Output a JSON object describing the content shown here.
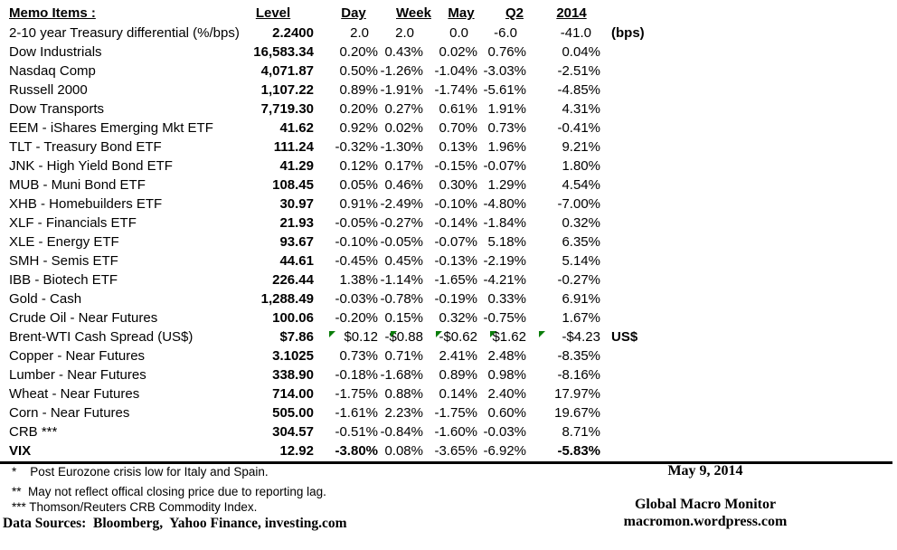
{
  "colors": {
    "flag_green": "#0a7d0a",
    "text": "#000000",
    "background": "#ffffff"
  },
  "table": {
    "title": "Memo Items :",
    "columns": [
      "Level",
      "Day",
      "Week",
      "May",
      "Q2",
      "2014"
    ],
    "rows": [
      {
        "label": "2-10 year Treasury differential (%/bps)",
        "level": "2.2400",
        "values": [
          "2.0",
          "2.0",
          "0.0",
          "-6.0",
          "-41.0"
        ],
        "suffix": "(bps)",
        "pad_values": true
      },
      {
        "label": "Dow Industrials",
        "level": "16,583.34",
        "values": [
          "0.20%",
          "0.43%",
          "0.02%",
          "0.76%",
          "0.04%"
        ]
      },
      {
        "label": "Nasdaq Comp",
        "level": "4,071.87",
        "values": [
          "0.50%",
          "-1.26%",
          "-1.04%",
          "-3.03%",
          "-2.51%"
        ]
      },
      {
        "label": "Russell 2000",
        "level": "1,107.22",
        "values": [
          "0.89%",
          "-1.91%",
          "-1.74%",
          "-5.61%",
          "-4.85%"
        ]
      },
      {
        "label": "Dow Transports",
        "level": "7,719.30",
        "values": [
          "0.20%",
          "0.27%",
          "0.61%",
          "1.91%",
          "4.31%"
        ]
      },
      {
        "label": "EEM - iShares Emerging Mkt ETF",
        "level": "41.62",
        "values": [
          "0.92%",
          "0.02%",
          "0.70%",
          "0.73%",
          "-0.41%"
        ]
      },
      {
        "label": "TLT - Treasury Bond ETF",
        "level": "111.24",
        "values": [
          "-0.32%",
          "-1.30%",
          "0.13%",
          "1.96%",
          "9.21%"
        ]
      },
      {
        "label": "JNK - High Yield Bond ETF",
        "level": "41.29",
        "values": [
          "0.12%",
          "0.17%",
          "-0.15%",
          "-0.07%",
          "1.80%"
        ]
      },
      {
        "label": "MUB - Muni Bond ETF",
        "level": "108.45",
        "values": [
          "0.05%",
          "0.46%",
          "0.30%",
          "1.29%",
          "4.54%"
        ]
      },
      {
        "label": "XHB - Homebuilders ETF",
        "level": "30.97",
        "values": [
          "0.91%",
          "-2.49%",
          "-0.10%",
          "-4.80%",
          "-7.00%"
        ]
      },
      {
        "label": "XLF - Financials ETF",
        "level": "21.93",
        "values": [
          "-0.05%",
          "-0.27%",
          "-0.14%",
          "-1.84%",
          "0.32%"
        ]
      },
      {
        "label": "XLE - Energy ETF",
        "level": "93.67",
        "values": [
          "-0.10%",
          "-0.05%",
          "-0.07%",
          "5.18%",
          "6.35%"
        ]
      },
      {
        "label": "SMH - Semis ETF",
        "level": "44.61",
        "values": [
          "-0.45%",
          "0.45%",
          "-0.13%",
          "-2.19%",
          "5.14%"
        ]
      },
      {
        "label": "IBB - Biotech ETF",
        "level": "226.44",
        "values": [
          "1.38%",
          "-1.14%",
          "-1.65%",
          "-4.21%",
          "-0.27%"
        ]
      },
      {
        "label": "Gold - Cash",
        "level": "1,288.49",
        "values": [
          "-0.03%",
          "-0.78%",
          "-0.19%",
          "0.33%",
          "6.91%"
        ]
      },
      {
        "label": "Crude Oil - Near Futures",
        "level": "100.06",
        "values": [
          "-0.20%",
          "0.15%",
          "0.32%",
          "-0.75%",
          "1.67%"
        ]
      },
      {
        "label": "Brent-WTI Cash Spread (US$)",
        "level": "$7.86",
        "values": [
          "$0.12",
          "-$0.88",
          "-$0.62",
          "$1.62",
          "-$4.23"
        ],
        "suffix": "US$",
        "flags": true
      },
      {
        "label": "Copper - Near Futures",
        "level": "3.1025",
        "values": [
          "0.73%",
          "0.71%",
          "2.41%",
          "2.48%",
          "-8.35%"
        ]
      },
      {
        "label": "Lumber - Near Futures",
        "level": "338.90",
        "values": [
          "-0.18%",
          "-1.68%",
          "0.89%",
          "0.98%",
          "-8.16%"
        ]
      },
      {
        "label": "Wheat - Near Futures",
        "level": "714.00",
        "values": [
          "-1.75%",
          "0.88%",
          "0.14%",
          "2.40%",
          "17.97%"
        ]
      },
      {
        "label": "Corn - Near Futures",
        "level": "505.00",
        "values": [
          "-1.61%",
          "2.23%",
          "-1.75%",
          "0.60%",
          "19.67%"
        ]
      },
      {
        "label": "CRB ***",
        "level": "304.57",
        "values": [
          "-0.51%",
          "-0.84%",
          "-1.60%",
          "-0.03%",
          "8.71%"
        ]
      },
      {
        "label": "VIX",
        "label_bold": true,
        "level": "12.92",
        "values": [
          "-3.80%",
          "0.08%",
          "-3.65%",
          "-6.92%",
          "-5.83%"
        ],
        "bold_values": [
          0,
          4
        ]
      }
    ]
  },
  "footnotes": [
    "*    Post Eurozone crisis low for Italy and Spain.",
    "**  May not reflect offical closing price due to reporting lag.",
    "*** Thomson/Reuters CRB Commodity Index."
  ],
  "data_sources": "Data Sources:  Bloomberg,  Yahoo Finance, investing.com",
  "footer": {
    "date": "May 9, 2014",
    "title": "Global Macro Monitor",
    "url": "macromon.wordpress.com"
  }
}
